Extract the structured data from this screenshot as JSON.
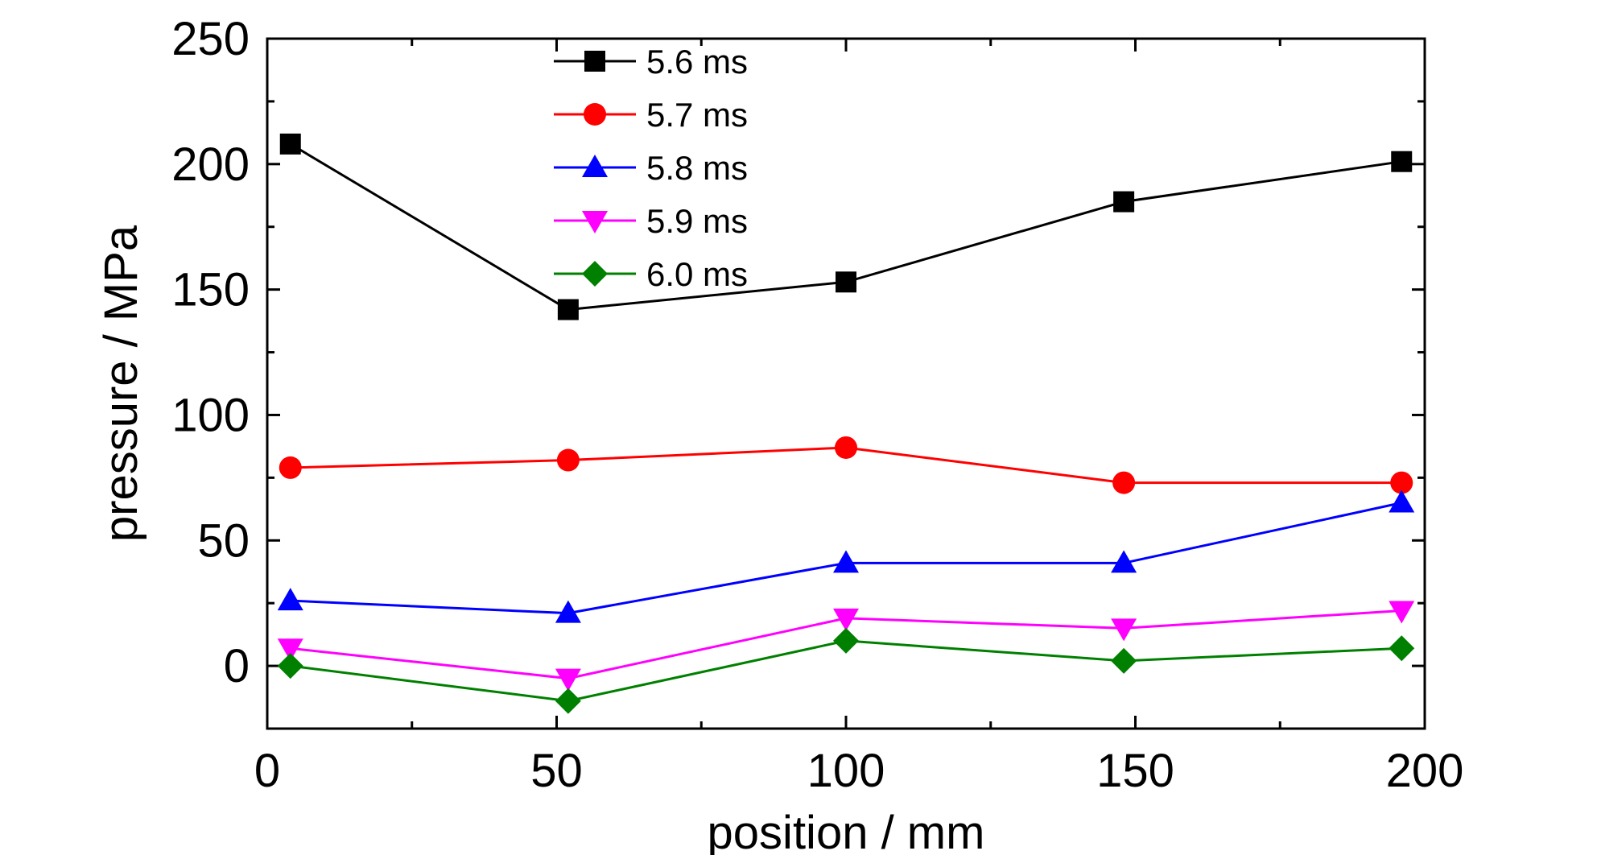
{
  "chart_data": {
    "type": "line",
    "xlabel": "position / mm",
    "ylabel": "pressure / MPa",
    "xlim": [
      0,
      200
    ],
    "ylim": [
      -25,
      250
    ],
    "x_ticks": [
      0,
      50,
      100,
      150,
      200
    ],
    "y_ticks": [
      0,
      50,
      100,
      150,
      200,
      250
    ],
    "grid": false,
    "legend_position": "top-center",
    "series": [
      {
        "name": "5.6 ms",
        "color": "#000000",
        "marker": "square",
        "x": [
          4,
          52,
          100,
          148,
          196
        ],
        "y": [
          208,
          142,
          153,
          185,
          201
        ]
      },
      {
        "name": "5.7 ms",
        "color": "#ff0000",
        "marker": "circle",
        "x": [
          4,
          52,
          100,
          148,
          196
        ],
        "y": [
          79,
          82,
          87,
          73,
          73
        ]
      },
      {
        "name": "5.8 ms",
        "color": "#0000ff",
        "marker": "triangle-up",
        "x": [
          4,
          52,
          100,
          148,
          196
        ],
        "y": [
          26,
          21,
          41,
          41,
          65
        ]
      },
      {
        "name": "5.9 ms",
        "color": "#ff00ff",
        "marker": "triangle-down",
        "x": [
          4,
          52,
          100,
          148,
          196
        ],
        "y": [
          7,
          -5,
          19,
          15,
          22
        ]
      },
      {
        "name": "6.0 ms",
        "color": "#008000",
        "marker": "diamond",
        "x": [
          4,
          52,
          100,
          148,
          196
        ],
        "y": [
          0,
          -14,
          10,
          2,
          7
        ]
      }
    ]
  }
}
